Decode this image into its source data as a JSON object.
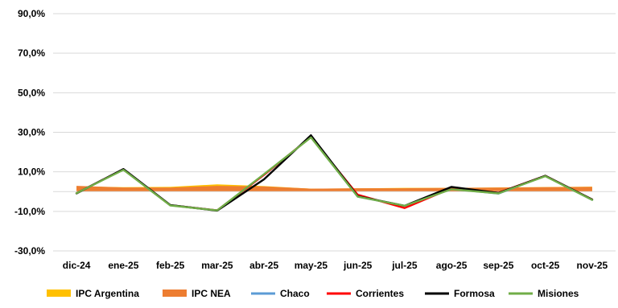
{
  "chart_data": {
    "type": "line",
    "categories": [
      "dic-24",
      "ene-25",
      "feb-25",
      "mar-25",
      "abr-25",
      "may-25",
      "jun-25",
      "jul-25",
      "ago-25",
      "sep-25",
      "oct-25",
      "nov-25"
    ],
    "ylim": [
      -30,
      90
    ],
    "yticks": [
      -30,
      -10,
      10,
      30,
      50,
      70,
      90
    ],
    "ytick_labels": [
      "-30,0%",
      "-10,0%",
      "10,0%",
      "30,0%",
      "50,0%",
      "70,0%",
      "90,0%"
    ],
    "grid": true,
    "legend_position": "bottom",
    "title": "",
    "xlabel": "",
    "ylabel": "",
    "series": [
      {
        "name": "IPC Argentina",
        "kind": "area",
        "color": "#FFC000",
        "values": [
          2.7,
          2.2,
          2.4,
          3.7,
          2.8,
          1.5,
          1.6,
          1.9,
          1.9,
          2.1,
          2.3,
          2.5
        ]
      },
      {
        "name": "IPC NEA",
        "kind": "area",
        "color": "#ED7D31",
        "values": [
          2.9,
          2.1,
          2.0,
          2.9,
          2.6,
          1.5,
          1.7,
          1.7,
          1.9,
          2.0,
          2.2,
          2.4
        ]
      },
      {
        "name": "Chaco",
        "kind": "line",
        "color": "#5B9BD5",
        "values": [
          -0.8,
          11.3,
          -6.9,
          -9.5,
          8.5,
          27.6,
          -2.6,
          -7.2,
          1.4,
          -1.0,
          7.9,
          -4.2
        ]
      },
      {
        "name": "Corrientes",
        "kind": "line",
        "color": "#FF0000",
        "values": [
          -0.8,
          11.3,
          -6.9,
          -9.5,
          8.5,
          27.6,
          -1.6,
          -8.3,
          1.7,
          -0.6,
          8.0,
          -4.0
        ]
      },
      {
        "name": "Formosa",
        "kind": "line",
        "color": "#000000",
        "values": [
          -0.9,
          11.4,
          -6.8,
          -9.6,
          6.2,
          28.5,
          -2.4,
          -7.2,
          2.4,
          -0.7,
          8.0,
          -4.0
        ]
      },
      {
        "name": "Misiones",
        "kind": "line",
        "color": "#70AD47",
        "values": [
          -0.8,
          11.0,
          -7.0,
          -9.5,
          8.8,
          27.4,
          -2.6,
          -7.2,
          1.2,
          -0.9,
          7.8,
          -4.2
        ]
      }
    ]
  }
}
